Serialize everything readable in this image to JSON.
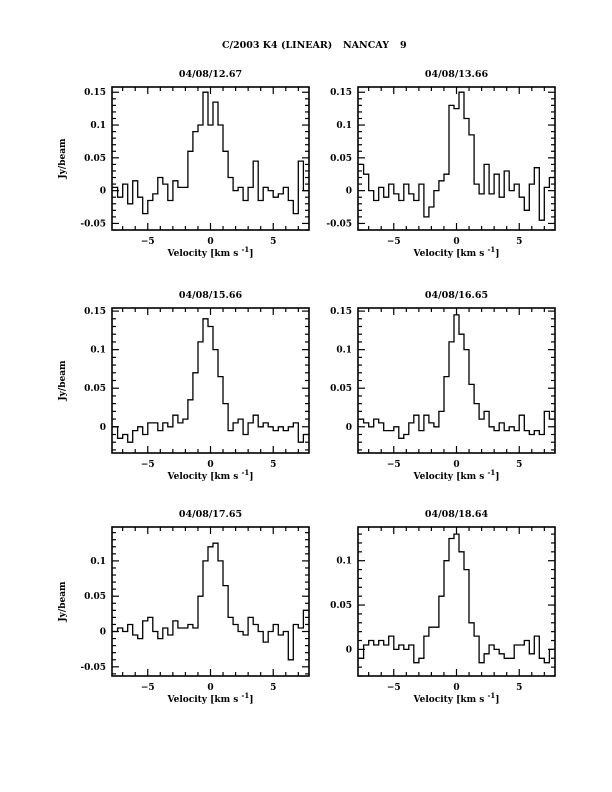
{
  "header": {
    "object": "C/2003 K4 (LINEAR)",
    "station": "NANCAY",
    "number": "9"
  },
  "colors": {
    "line": "#000000",
    "background": "#ffffff"
  },
  "chart_data": [
    {
      "type": "line",
      "step": true,
      "title": "04/08/12.67",
      "xlabel": "Velocity [km s^-1]",
      "xlabel_main": "Velocity [km s",
      "xlabel_sup": "-1",
      "xlabel_end": "]",
      "ylabel": "Jy/beam",
      "xlim": [
        -7.85,
        7.85
      ],
      "ylim": [
        -0.06,
        0.158
      ],
      "xticks": [
        -5,
        0,
        5
      ],
      "yticks": [
        -0.05,
        0,
        0.05,
        0.1,
        0.15
      ],
      "ytick_labels": [
        "-0.05",
        "0",
        "0.05",
        "0.1",
        "0.15"
      ],
      "bin_width": 0.4,
      "x": [
        -7.6,
        -7.2,
        -6.8,
        -6.4,
        -6.0,
        -5.6,
        -5.2,
        -4.8,
        -4.4,
        -4.0,
        -3.6,
        -3.2,
        -2.8,
        -2.4,
        -2.0,
        -1.6,
        -1.2,
        -0.8,
        -0.4,
        0.0,
        0.4,
        0.8,
        1.2,
        1.6,
        2.0,
        2.4,
        2.8,
        3.2,
        3.6,
        4.0,
        4.4,
        4.8,
        5.2,
        5.6,
        6.0,
        6.4,
        6.8,
        7.2,
        7.6
      ],
      "y": [
        0.005,
        -0.01,
        0.01,
        -0.02,
        0.015,
        -0.01,
        -0.035,
        -0.015,
        -0.005,
        0.02,
        0.01,
        -0.015,
        0.015,
        0.005,
        0.005,
        0.06,
        0.09,
        0.1,
        0.15,
        0.1,
        0.135,
        0.1,
        0.06,
        0.02,
        0.0,
        0.005,
        -0.015,
        0.005,
        0.045,
        -0.015,
        0.005,
        0.0,
        -0.01,
        -0.005,
        0.005,
        -0.015,
        -0.035,
        0.045,
        0.0
      ]
    },
    {
      "type": "line",
      "step": true,
      "title": "04/08/13.66",
      "xlabel": "Velocity [km s^-1]",
      "xlabel_main": "Velocity [km s",
      "xlabel_sup": "-1",
      "xlabel_end": "]",
      "ylabel": "",
      "xlim": [
        -7.85,
        7.85
      ],
      "ylim": [
        -0.06,
        0.158
      ],
      "xticks": [
        -5,
        0,
        5
      ],
      "yticks": [
        -0.05,
        0,
        0.05,
        0.1,
        0.15
      ],
      "ytick_labels": [
        "-0.05",
        "0",
        "0.05",
        "0.1",
        "0.15"
      ],
      "bin_width": 0.4,
      "x": [
        -7.6,
        -7.2,
        -6.8,
        -6.4,
        -6.0,
        -5.6,
        -5.2,
        -4.8,
        -4.4,
        -4.0,
        -3.6,
        -3.2,
        -2.8,
        -2.4,
        -2.0,
        -1.6,
        -1.2,
        -0.8,
        -0.4,
        0.0,
        0.4,
        0.8,
        1.2,
        1.6,
        2.0,
        2.4,
        2.8,
        3.2,
        3.6,
        4.0,
        4.4,
        4.8,
        5.2,
        5.6,
        6.0,
        6.4,
        6.8,
        7.2,
        7.6
      ],
      "y": [
        0.04,
        0.025,
        0.0,
        -0.015,
        0.005,
        -0.01,
        0.01,
        -0.005,
        -0.015,
        0.01,
        -0.005,
        -0.015,
        0.01,
        -0.04,
        -0.025,
        0.0,
        0.015,
        0.025,
        0.13,
        0.125,
        0.15,
        0.11,
        0.085,
        0.01,
        -0.005,
        0.04,
        -0.005,
        0.025,
        -0.01,
        0.03,
        0.0,
        0.01,
        -0.01,
        -0.03,
        0.01,
        0.035,
        -0.045,
        0.005,
        0.02
      ]
    },
    {
      "type": "line",
      "step": true,
      "title": "04/08/15.66",
      "xlabel": "Velocity [km s^-1]",
      "xlabel_main": "Velocity [km s",
      "xlabel_sup": "-1",
      "xlabel_end": "]",
      "ylabel": "Jy/beam",
      "xlim": [
        -7.85,
        7.85
      ],
      "ylim": [
        -0.034,
        0.154
      ],
      "xticks": [
        -5,
        0,
        5
      ],
      "yticks": [
        0,
        0.05,
        0.1,
        0.15
      ],
      "ytick_labels": [
        "0",
        "0.05",
        "0.1",
        "0.15"
      ],
      "bin_width": 0.4,
      "x": [
        -7.6,
        -7.2,
        -6.8,
        -6.4,
        -6.0,
        -5.6,
        -5.2,
        -4.8,
        -4.4,
        -4.0,
        -3.6,
        -3.2,
        -2.8,
        -2.4,
        -2.0,
        -1.6,
        -1.2,
        -0.8,
        -0.4,
        0.0,
        0.4,
        0.8,
        1.2,
        1.6,
        2.0,
        2.4,
        2.8,
        3.2,
        3.6,
        4.0,
        4.4,
        4.8,
        5.2,
        5.6,
        6.0,
        6.4,
        6.8,
        7.2,
        7.6
      ],
      "y": [
        0.0,
        -0.015,
        -0.01,
        -0.02,
        -0.005,
        0.0,
        -0.01,
        0.005,
        0.005,
        -0.005,
        0.005,
        0.0,
        0.015,
        0.005,
        0.01,
        0.035,
        0.07,
        0.11,
        0.14,
        0.13,
        0.1,
        0.065,
        0.03,
        -0.005,
        0.005,
        0.01,
        -0.01,
        0.005,
        0.015,
        0.0,
        0.005,
        0.0,
        -0.005,
        0.0,
        -0.005,
        0.0,
        0.005,
        -0.02,
        -0.01
      ]
    },
    {
      "type": "line",
      "step": true,
      "title": "04/08/16.65",
      "xlabel": "Velocity [km s^-1]",
      "xlabel_main": "Velocity [km s",
      "xlabel_sup": "-1",
      "xlabel_end": "]",
      "ylabel": "",
      "xlim": [
        -7.85,
        7.85
      ],
      "ylim": [
        -0.034,
        0.154
      ],
      "xticks": [
        -5,
        0,
        5
      ],
      "yticks": [
        0,
        0.05,
        0.1,
        0.15
      ],
      "ytick_labels": [
        "0",
        "0.05",
        "0.1",
        "0.15"
      ],
      "bin_width": 0.4,
      "x": [
        -7.6,
        -7.2,
        -6.8,
        -6.4,
        -6.0,
        -5.6,
        -5.2,
        -4.8,
        -4.4,
        -4.0,
        -3.6,
        -3.2,
        -2.8,
        -2.4,
        -2.0,
        -1.6,
        -1.2,
        -0.8,
        -0.4,
        0.0,
        0.4,
        0.8,
        1.2,
        1.6,
        2.0,
        2.4,
        2.8,
        3.2,
        3.6,
        4.0,
        4.4,
        4.8,
        5.2,
        5.6,
        6.0,
        6.4,
        6.8,
        7.2,
        7.6
      ],
      "y": [
        0.01,
        0.005,
        0.0,
        0.01,
        0.005,
        -0.005,
        -0.005,
        0.0,
        -0.015,
        -0.01,
        0.005,
        0.015,
        -0.005,
        0.015,
        0.005,
        0.0,
        0.02,
        0.065,
        0.11,
        0.145,
        0.12,
        0.1,
        0.055,
        0.03,
        0.01,
        0.02,
        0.0,
        -0.005,
        0.005,
        -0.005,
        0.0,
        -0.005,
        0.015,
        -0.005,
        -0.01,
        -0.005,
        -0.01,
        0.02,
        0.01
      ]
    },
    {
      "type": "line",
      "step": true,
      "title": "04/08/17.65",
      "xlabel": "Velocity [km s^-1]",
      "xlabel_main": "Velocity [km s",
      "xlabel_sup": "-1",
      "xlabel_end": "]",
      "ylabel": "Jy/beam",
      "xlim": [
        -7.85,
        7.85
      ],
      "ylim": [
        -0.063,
        0.148
      ],
      "xticks": [
        -5,
        0,
        5
      ],
      "yticks": [
        -0.05,
        0,
        0.05,
        0.1
      ],
      "ytick_labels": [
        "-0.05",
        "0",
        "0.05",
        "0.1"
      ],
      "bin_width": 0.4,
      "x": [
        -7.6,
        -7.2,
        -6.8,
        -6.4,
        -6.0,
        -5.6,
        -5.2,
        -4.8,
        -4.4,
        -4.0,
        -3.6,
        -3.2,
        -2.8,
        -2.4,
        -2.0,
        -1.6,
        -1.2,
        -0.8,
        -0.4,
        0.0,
        0.4,
        0.8,
        1.2,
        1.6,
        2.0,
        2.4,
        2.8,
        3.2,
        3.6,
        4.0,
        4.4,
        4.8,
        5.2,
        5.6,
        6.0,
        6.4,
        6.8,
        7.2,
        7.6
      ],
      "y": [
        0.0,
        0.005,
        0.0,
        0.01,
        -0.005,
        -0.01,
        0.015,
        0.02,
        0.0,
        -0.01,
        0.005,
        -0.005,
        0.015,
        0.005,
        0.005,
        0.01,
        0.005,
        0.05,
        0.1,
        0.12,
        0.125,
        0.1,
        0.065,
        0.02,
        0.01,
        0.0,
        -0.005,
        0.02,
        0.01,
        0.0,
        -0.015,
        0.0,
        0.01,
        -0.005,
        0.0,
        -0.04,
        0.01,
        0.005,
        0.03
      ]
    },
    {
      "type": "line",
      "step": true,
      "title": "04/08/18.64",
      "xlabel": "Velocity [km s^-1]",
      "xlabel_main": "Velocity [km s",
      "xlabel_sup": "-1",
      "xlabel_end": "]",
      "ylabel": "",
      "xlim": [
        -7.85,
        7.85
      ],
      "ylim": [
        -0.03,
        0.138
      ],
      "xticks": [
        -5,
        0,
        5
      ],
      "yticks": [
        0,
        0.05,
        0.1
      ],
      "ytick_labels": [
        "0",
        "0.05",
        "0.1"
      ],
      "bin_width": 0.4,
      "x": [
        -7.6,
        -7.2,
        -6.8,
        -6.4,
        -6.0,
        -5.6,
        -5.2,
        -4.8,
        -4.4,
        -4.0,
        -3.6,
        -3.2,
        -2.8,
        -2.4,
        -2.0,
        -1.6,
        -1.2,
        -0.8,
        -0.4,
        0.0,
        0.4,
        0.8,
        1.2,
        1.6,
        2.0,
        2.4,
        2.8,
        3.2,
        3.6,
        4.0,
        4.4,
        4.8,
        5.2,
        5.6,
        6.0,
        6.4,
        6.8,
        7.2,
        7.6
      ],
      "y": [
        -0.01,
        0.005,
        0.01,
        0.005,
        0.01,
        0.005,
        0.015,
        0.0,
        0.005,
        0.0,
        0.005,
        -0.015,
        -0.01,
        0.015,
        0.025,
        0.025,
        0.06,
        0.1,
        0.125,
        0.13,
        0.11,
        0.09,
        0.03,
        0.015,
        -0.015,
        -0.005,
        0.005,
        0.0,
        -0.005,
        -0.01,
        -0.01,
        0.005,
        0.005,
        0.01,
        -0.005,
        0.015,
        -0.01,
        -0.015,
        0.0
      ]
    }
  ]
}
